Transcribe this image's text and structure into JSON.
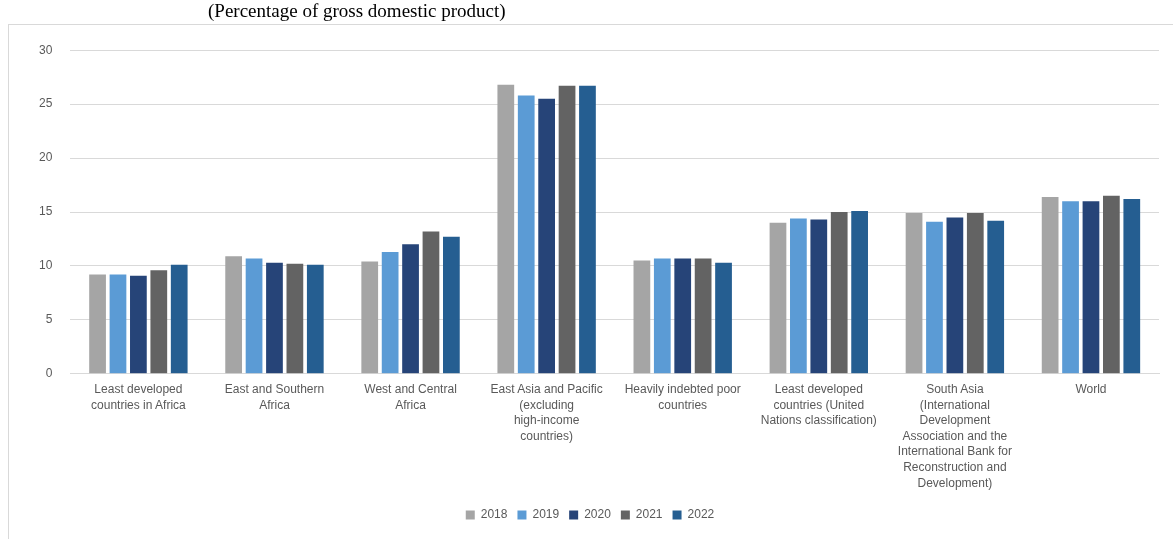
{
  "chart_data": {
    "type": "bar",
    "title": "(Percentage of gross domestic product)",
    "categories": [
      "Least developed countries in Africa",
      "East and Southern Africa",
      "West and Central Africa",
      "East Asia and Pacific (excluding high-income countries)",
      "Heavily indebted poor countries",
      "Least developed countries (United Nations classification)",
      "South Asia (International Development Association and the International Bank for Reconstruction and Development)",
      "World"
    ],
    "series": [
      {
        "name": "2018",
        "color": "#a5a5a5",
        "values": [
          9.2,
          10.9,
          10.4,
          26.8,
          10.5,
          14.0,
          14.9,
          16.4
        ]
      },
      {
        "name": "2019",
        "color": "#5b9bd5",
        "values": [
          9.2,
          10.7,
          11.3,
          25.8,
          10.7,
          14.4,
          14.1,
          16.0
        ]
      },
      {
        "name": "2020",
        "color": "#264478",
        "values": [
          9.1,
          10.3,
          12.0,
          25.5,
          10.7,
          14.3,
          14.5,
          16.0
        ]
      },
      {
        "name": "2021",
        "color": "#636363",
        "values": [
          9.6,
          10.2,
          13.2,
          26.7,
          10.7,
          15.0,
          14.9,
          16.5
        ]
      },
      {
        "name": "2022",
        "color": "#255e91",
        "values": [
          10.1,
          10.1,
          12.7,
          26.7,
          10.3,
          15.1,
          14.2,
          16.2
        ]
      }
    ],
    "ylim": [
      0,
      30
    ],
    "yticks": [
      0,
      5,
      10,
      15,
      20,
      25,
      30
    ],
    "grid": "y",
    "legend": "bottom"
  }
}
